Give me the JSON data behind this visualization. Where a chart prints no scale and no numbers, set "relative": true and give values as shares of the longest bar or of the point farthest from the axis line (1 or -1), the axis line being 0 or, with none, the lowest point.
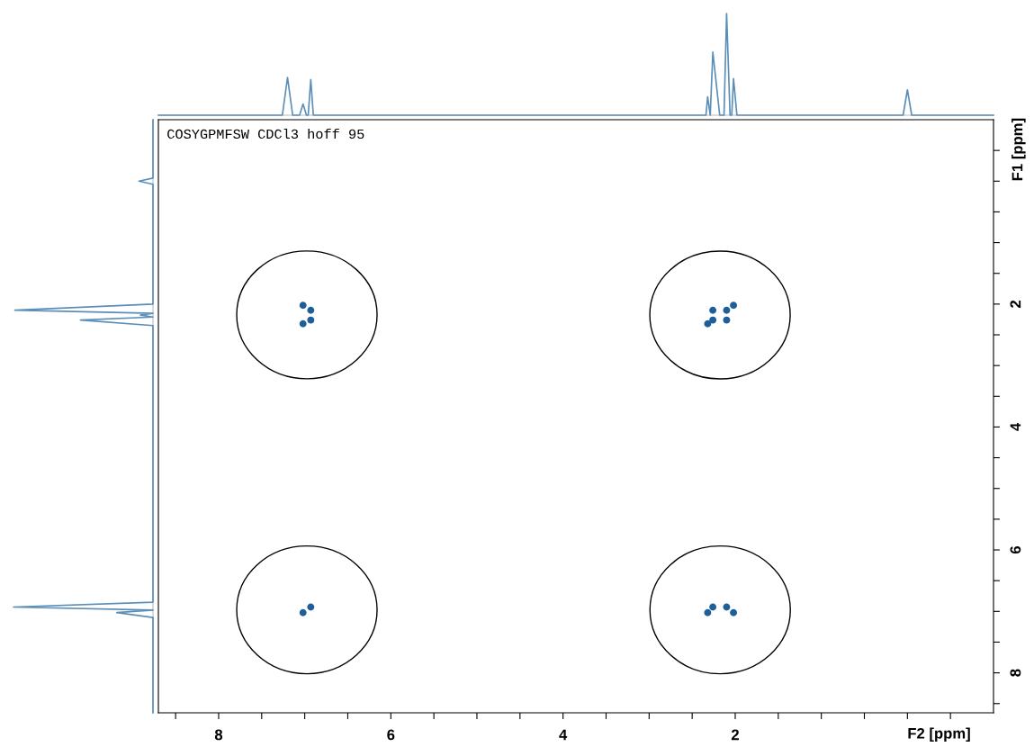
{
  "chart_data": [
    {
      "type": "line",
      "relative": true,
      "tick_labels": false,
      "grid": false,
      "marker": "none",
      "line_style": "solid",
      "xlim": [
        8.7,
        -1.0
      ],
      "x": [
        8.7,
        7.26,
        7.2,
        7.14,
        7.06,
        7.02,
        6.98,
        6.96,
        6.93,
        6.9,
        2.4,
        2.34,
        2.32,
        2.29,
        2.26,
        2.18,
        2.13,
        2.1,
        2.06,
        2.04,
        2.02,
        1.98,
        0.05,
        0.0,
        -0.05,
        -1.0
      ],
      "series": [
        {
          "color": "#5b8fb9",
          "values": [
            0,
            0,
            0.37,
            0,
            0,
            0.11,
            0,
            0,
            0.35,
            0,
            0,
            0,
            0.18,
            0,
            0.62,
            0,
            0,
            1.0,
            0,
            0,
            0.36,
            0,
            0,
            0.25,
            0,
            0
          ]
        }
      ]
    },
    {
      "type": "line",
      "relative": true,
      "orientation": "horizontal",
      "tick_labels": false,
      "grid": false,
      "marker": "none",
      "line_style": "solid",
      "ylim": [
        8.65,
        -1.0
      ],
      "x": [
        -1.0,
        -0.05,
        0.0,
        0.05,
        2.0,
        2.1,
        2.15,
        2.18,
        2.21,
        2.26,
        2.35,
        6.85,
        6.93,
        6.98,
        7.02,
        7.1,
        8.65
      ],
      "series": [
        {
          "color": "#5b8fb9",
          "values": [
            0,
            0,
            -0.1,
            0,
            0,
            -0.99,
            0,
            -0.09,
            0,
            -0.52,
            0,
            0,
            -1.0,
            0,
            -0.26,
            0,
            0
          ]
        }
      ]
    },
    {
      "type": "scatter",
      "marker": "circle",
      "grid": false,
      "xlabel": "F2 [ppm]",
      "ylabel": "F1 [ppm]",
      "xlim": [
        8.7,
        -1.0
      ],
      "ylim": [
        8.65,
        -1.0
      ],
      "xticks": [
        8,
        6,
        4,
        2,
        {
          "value": 0,
          "label": null
        },
        {
          "value": 8.5,
          "label": null
        },
        {
          "value": 7.5,
          "label": null
        },
        {
          "value": 7,
          "label": null
        },
        {
          "value": 6.5,
          "label": null
        },
        {
          "value": 5.5,
          "label": null
        },
        {
          "value": 5,
          "label": null
        },
        {
          "value": 4.5,
          "label": null
        },
        {
          "value": 3.5,
          "label": null
        },
        {
          "value": 3,
          "label": null
        },
        {
          "value": 2.5,
          "label": null
        },
        {
          "value": 1.5,
          "label": null
        },
        {
          "value": 1,
          "label": null
        },
        {
          "value": 0.5,
          "label": null
        },
        {
          "value": -0.5,
          "label": null
        }
      ],
      "yticks": [
        {
          "value": 0,
          "label": null
        },
        2,
        4,
        6,
        8,
        {
          "value": -0.5,
          "label": null
        },
        {
          "value": 0.5,
          "label": null
        },
        {
          "value": 1,
          "label": null
        },
        {
          "value": 1.5,
          "label": null
        },
        {
          "value": 2.5,
          "label": null
        },
        {
          "value": 3,
          "label": null
        },
        {
          "value": 3.5,
          "label": null
        },
        {
          "value": 4.5,
          "label": null
        },
        {
          "value": 5,
          "label": null
        },
        {
          "value": 5.5,
          "label": null
        },
        {
          "value": 6.5,
          "label": null
        },
        {
          "value": 7,
          "label": null
        },
        {
          "value": 7.5,
          "label": null
        },
        {
          "value": 8.5,
          "label": null
        }
      ],
      "annotations": [
        "COSYGPMFSW CDCl3 hoff 95"
      ],
      "series": [
        {
          "color": "#1f5f99",
          "x": [
            7.02,
            6.93,
            6.93,
            7.02
          ],
          "values": [
            2.02,
            2.1,
            2.26,
            2.32
          ]
        },
        {
          "color": "#1f5f99",
          "x": [
            2.26,
            2.26,
            2.1,
            2.1,
            2.02,
            2.32
          ],
          "values": [
            2.1,
            2.26,
            2.1,
            2.26,
            2.02,
            2.32
          ]
        },
        {
          "color": "#1f5f99",
          "x": [
            7.02,
            6.93
          ],
          "values": [
            7.02,
            6.93
          ]
        },
        {
          "color": "#1f5f99",
          "x": [
            2.32,
            2.26,
            2.1,
            2.02
          ],
          "values": [
            7.02,
            6.93,
            6.93,
            7.02
          ]
        }
      ]
    }
  ]
}
